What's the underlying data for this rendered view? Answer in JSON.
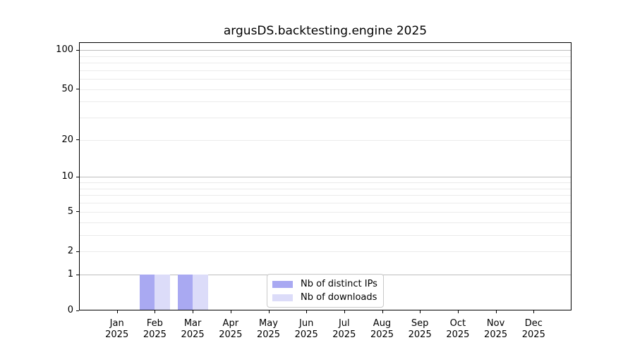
{
  "figure": {
    "background": "#ffffff"
  },
  "chart_data": {
    "type": "bar",
    "title": "argusDS.backtesting.engine 2025",
    "xlabel": "",
    "ylabel": "",
    "categories": [
      "Jan 2025",
      "Feb 2025",
      "Mar 2025",
      "Apr 2025",
      "May 2025",
      "Jun 2025",
      "Jul 2025",
      "Aug 2025",
      "Sep 2025",
      "Oct 2025",
      "Nov 2025",
      "Dec 2025"
    ],
    "series": [
      {
        "name": "Nb of distinct IPs",
        "color": "#a9a9f2",
        "values": [
          0,
          1,
          1,
          0,
          0,
          0,
          0,
          0,
          0,
          0,
          0,
          0
        ]
      },
      {
        "name": "Nb of downloads",
        "color": "#dcdcf9",
        "values": [
          0,
          1,
          1,
          0,
          0,
          0,
          0,
          0,
          0,
          0,
          0,
          0
        ]
      }
    ],
    "y_scale": "log1p",
    "ylim": [
      0,
      115
    ],
    "y_tick_values": [
      0,
      1,
      2,
      5,
      10,
      20,
      50,
      100
    ],
    "y_tick_labels": [
      "0",
      "1",
      "2",
      "5",
      "10",
      "20",
      "50",
      "100"
    ],
    "minor_grid_values": [
      2,
      3,
      4,
      5,
      6,
      7,
      8,
      9,
      20,
      30,
      40,
      50,
      60,
      70,
      80,
      90
    ],
    "major_grid_values": [
      1,
      10,
      100
    ],
    "grid": "horizontal",
    "legend": {
      "position": "lower center",
      "entries": [
        {
          "label": "Nb of distinct IPs",
          "color": "#a9a9f2"
        },
        {
          "label": "Nb of downloads",
          "color": "#dcdcf9"
        }
      ]
    },
    "colors": {
      "bar_distinct_ips": "#a9a9f2",
      "bar_downloads": "#dcdcf9",
      "major_grid": "#bdbdbd",
      "minor_grid": "#ebebeb",
      "spine": "#000000",
      "text": "#000000",
      "background": "#ffffff"
    }
  }
}
